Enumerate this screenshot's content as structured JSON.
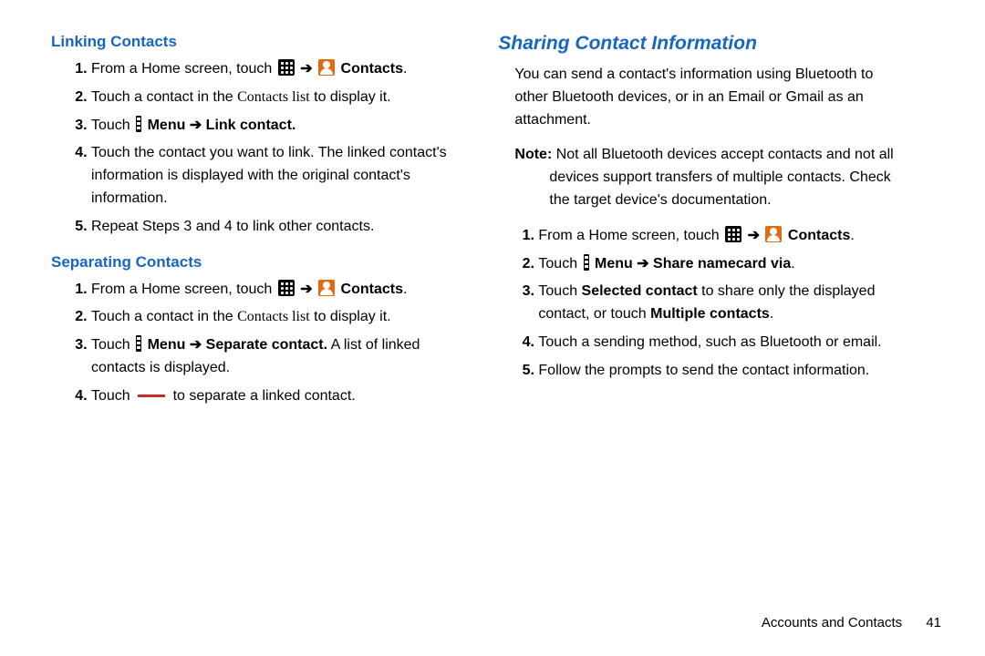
{
  "colors": {
    "heading": "#1766c3",
    "apps_icon_bg": "#000000",
    "contacts_icon_bg": "#e36a0f",
    "minus_bar": "#c92a2a",
    "text": "#000000",
    "background": "#ffffff"
  },
  "typography": {
    "body_fontsize": 16,
    "heading_fontsize": 17,
    "section_heading_fontsize": 21,
    "font_family": "Arial"
  },
  "left": {
    "linking": {
      "title": "Linking Contacts",
      "steps": [
        {
          "pre": "From a Home screen, touch ",
          "end": "Contacts",
          "after": "."
        },
        {
          "text_pre": "Touch a contact in the ",
          "cl": "Contacts list",
          "text_post": " to display it."
        },
        {
          "pre": "Touch ",
          "mid": "Menu ➔ Link contact."
        },
        {
          "text": "Touch the contact you want to link. The linked contact's information is displayed with the original contact's information."
        },
        {
          "text": "Repeat Steps 3 and 4 to link other contacts."
        }
      ]
    },
    "separating": {
      "title": "Separating Contacts",
      "steps": [
        {
          "pre": "From a Home screen, touch ",
          "end": "Contacts",
          "after": "."
        },
        {
          "text_pre": "Touch a contact in the ",
          "cl": "Contacts list",
          "text_post": " to display it."
        },
        {
          "pre": "Touch ",
          "mid": "Menu ➔ Separate contact.",
          "post": " A list of linked contacts is displayed."
        },
        {
          "pre": "Touch ",
          "post": " to separate a linked contact."
        }
      ]
    }
  },
  "right": {
    "sharing": {
      "title": "Sharing Contact Information",
      "intro": "You can send a contact's information using Bluetooth to other Bluetooth devices, or in an Email or Gmail as an attachment.",
      "note_label": "Note:",
      "note_text": " Not all Bluetooth devices accept contacts and not all devices support transfers of multiple contacts. Check the target device's documentation.",
      "steps": [
        {
          "pre": "From a Home screen, touch ",
          "end": "Contacts",
          "after": "."
        },
        {
          "pre": "Touch ",
          "mid": "Menu ➔ Share namecard via",
          "after": "."
        },
        {
          "pre": "Touch ",
          "b1": "Selected contact",
          "mid": " to share only the displayed contact, or touch ",
          "b2": "Multiple contacts",
          "after": "."
        },
        {
          "text": "Touch a sending method, such as Bluetooth or email."
        },
        {
          "text": "Follow the prompts to send the contact information."
        }
      ]
    }
  },
  "footer": {
    "chapter": "Accounts and Contacts",
    "page": "41"
  },
  "strings": {
    "arrow": "➔"
  }
}
